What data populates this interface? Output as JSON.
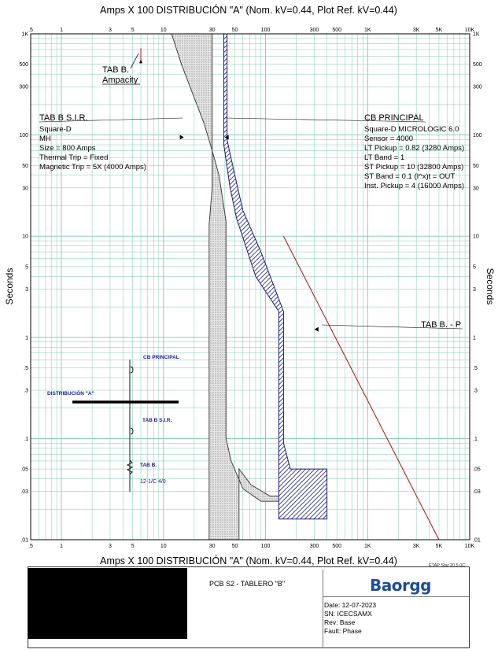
{
  "chart_data": {
    "type": "line",
    "title_top": "Amps  X  100   DISTRIBUCIÓN \"A\" (Nom. kV=0.44, Plot Ref. kV=0.44)",
    "title_bottom": "Amps  X  100   DISTRIBUCIÓN \"A\" (Nom. kV=0.44, Plot Ref. kV=0.44)",
    "ylabel": "Seconds",
    "xscale": "log",
    "yscale": "log",
    "xlim": [
      0.5,
      10000
    ],
    "ylim": [
      0.01,
      1000
    ],
    "grid": true,
    "x_ticks": [
      {
        "v": 0.5,
        "l": ".5"
      },
      {
        "v": 1,
        "l": "1"
      },
      {
        "v": 3,
        "l": "3"
      },
      {
        "v": 5,
        "l": "5"
      },
      {
        "v": 10,
        "l": "10"
      },
      {
        "v": 30,
        "l": "30"
      },
      {
        "v": 50,
        "l": "50"
      },
      {
        "v": 100,
        "l": "100"
      },
      {
        "v": 300,
        "l": "300"
      },
      {
        "v": 500,
        "l": "500"
      },
      {
        "v": 1000,
        "l": "1K"
      },
      {
        "v": 3000,
        "l": "3K"
      },
      {
        "v": 5000,
        "l": "5K"
      },
      {
        "v": 10000,
        "l": "10K"
      }
    ],
    "y_ticks": [
      {
        "v": 1000,
        "l": "1K"
      },
      {
        "v": 500,
        "l": "500"
      },
      {
        "v": 300,
        "l": "300"
      },
      {
        "v": 100,
        "l": "100"
      },
      {
        "v": 50,
        "l": "50"
      },
      {
        "v": 30,
        "l": "30"
      },
      {
        "v": 10,
        "l": "10"
      },
      {
        "v": 5,
        "l": "5"
      },
      {
        "v": 3,
        "l": "3"
      },
      {
        "v": 1,
        "l": "1"
      },
      {
        "v": 0.5,
        "l": ".5"
      },
      {
        "v": 0.3,
        "l": ".3"
      },
      {
        "v": 0.1,
        "l": ".1"
      },
      {
        "v": 0.05,
        "l": ".05"
      },
      {
        "v": 0.03,
        "l": ".03"
      },
      {
        "v": 0.01,
        "l": ".01"
      }
    ],
    "series": [
      {
        "name": "TAB B S.I.R.",
        "color": "#404040",
        "fill": "dotted-gray",
        "polygon": [
          [
            12,
            1000
          ],
          [
            30,
            1000
          ],
          [
            30,
            30
          ],
          [
            28,
            13
          ],
          [
            28,
            0.01
          ],
          [
            55,
            0.01
          ],
          [
            55,
            0.05
          ],
          [
            72,
            0.035
          ],
          [
            110,
            0.027
          ],
          [
            160,
            0.027
          ],
          [
            160,
            0.024
          ],
          [
            90,
            0.024
          ],
          [
            60,
            0.032
          ],
          [
            46,
            0.06
          ],
          [
            41,
            0.1
          ],
          [
            41,
            14
          ],
          [
            35,
            40
          ],
          [
            30,
            70
          ],
          [
            25,
            130
          ],
          [
            15,
            500
          ]
        ]
      },
      {
        "name": "CB PRINCIPAL",
        "color": "#1a1a7a",
        "fill": "hatched-blue",
        "polygon": [
          [
            39,
            1000
          ],
          [
            42,
            1000
          ],
          [
            42,
            90
          ],
          [
            50,
            40
          ],
          [
            60,
            18
          ],
          [
            90,
            7
          ],
          [
            150,
            1.8
          ],
          [
            150,
            0.09
          ],
          [
            175,
            0.05
          ],
          [
            400,
            0.05
          ],
          [
            400,
            0.016
          ],
          [
            135,
            0.016
          ],
          [
            135,
            1.8
          ],
          [
            80,
            4
          ],
          [
            52,
            15
          ],
          [
            45,
            30
          ],
          [
            39,
            80
          ]
        ]
      },
      {
        "name": "TAB B. - P",
        "color": "#b22222",
        "points": [
          [
            150,
            10
          ],
          [
            5000,
            0.01
          ]
        ]
      },
      {
        "name": "TAB B. Ampacity",
        "color": "#b22222",
        "points": [
          [
            6,
            550
          ],
          [
            6,
            720
          ]
        ]
      }
    ],
    "annotations": {
      "ampacity": {
        "title": "TAB B.",
        "sub": "Ampacity"
      },
      "sir": {
        "title": "TAB B S.I.R.",
        "lines": [
          "Square-D",
          "MH",
          "Size = 800 Amps",
          "Thermal Trip = Fixed",
          "Magnetic Trip = 5X (4000 Amps)"
        ]
      },
      "cb": {
        "title": "CB PRINCIPAL",
        "lines": [
          "Square-D  MICROLOGIC 6.0",
          "Sensor = 4000",
          "LT Pickup = 0.82 (3280 Amps)",
          "LT Band = 1",
          "ST Pickup = 10 (32800 Amps)",
          "ST Band = 0.1  (I^x)t = OUT",
          "Inst. Pickup = 4 (16000 Amps)"
        ]
      },
      "tabp": {
        "title": "TAB B. - P"
      }
    },
    "one_line": {
      "cb_label": "CB PRINCIPAL",
      "bus_label": "DISTRIBUCIÓN \"A\"",
      "sir_label": "TAB B S.I.R.",
      "load_label": "TAB B.",
      "cable_label": "12-1/C 4/0"
    }
  },
  "footer": {
    "etap_version": "ETAP Star 20.5.0C",
    "project_title": "PCB S2 - TABLERO \"B\"",
    "logo": "Baorgg",
    "date_line": "Date:  12-07-2023",
    "sn_line": "SN:    ICECSAMX",
    "rev_line": "Rev:   Base",
    "fault_line": "Fault: Phase"
  },
  "colors": {
    "grid": "#7fc9b0",
    "frame": "#000000",
    "sir_curve": "#404040",
    "cb_curve": "#1a1a7a",
    "tabp": "#b22222",
    "one_line_blue": "#1a1aa0"
  }
}
